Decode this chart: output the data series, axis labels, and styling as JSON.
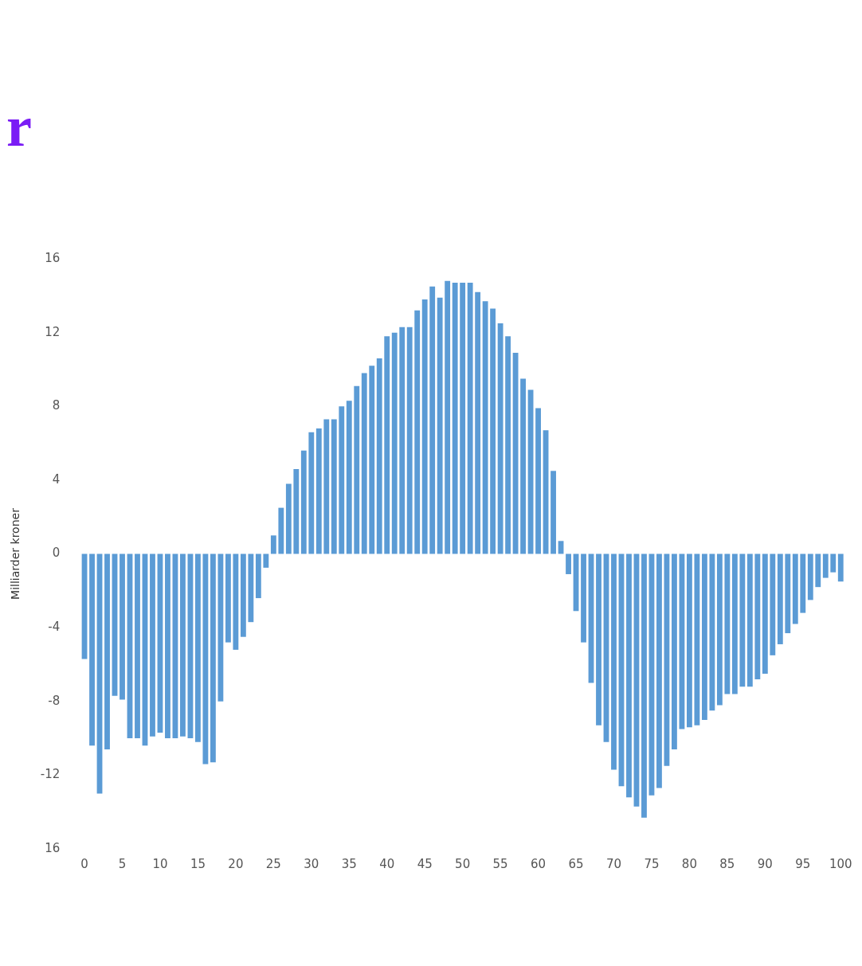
{
  "chart_data": {
    "type": "bar",
    "title": "r",
    "ylabel": "Milliarder kroner",
    "categories": [
      "0",
      null,
      null,
      null,
      null,
      "5",
      null,
      null,
      null,
      null,
      "10",
      null,
      null,
      null,
      null,
      "15",
      null,
      null,
      null,
      null,
      "20",
      null,
      null,
      null,
      null,
      "25",
      null,
      null,
      null,
      null,
      "30",
      null,
      null,
      null,
      null,
      "35",
      null,
      null,
      null,
      null,
      "40",
      null,
      null,
      null,
      null,
      "45",
      null,
      null,
      null,
      null,
      "50",
      null,
      null,
      null,
      null,
      "55",
      null,
      null,
      null,
      null,
      "60",
      null,
      null,
      null,
      null,
      "65",
      null,
      null,
      null,
      null,
      "70",
      null,
      null,
      null,
      null,
      "75",
      null,
      null,
      null,
      null,
      "80",
      null,
      null,
      null,
      null,
      "85",
      null,
      null,
      null,
      null,
      "90",
      null,
      null,
      null,
      null,
      "95",
      null,
      null,
      null,
      null,
      "100"
    ],
    "values": [
      -5.7,
      -10.4,
      -13.0,
      -10.6,
      -7.7,
      -7.9,
      -10.0,
      -10.0,
      -10.4,
      -9.9,
      -9.7,
      -10.0,
      -10.0,
      -9.9,
      -10.0,
      -10.2,
      -11.4,
      -11.3,
      -8.0,
      -4.8,
      -5.2,
      -4.5,
      -3.7,
      -2.4,
      -0.75,
      1.0,
      2.5,
      3.8,
      4.6,
      5.6,
      6.6,
      6.8,
      7.3,
      7.3,
      8.0,
      8.3,
      9.1,
      9.8,
      10.2,
      10.6,
      11.8,
      12.0,
      12.3,
      12.3,
      13.2,
      13.8,
      14.5,
      13.9,
      14.8,
      14.7,
      14.7,
      14.7,
      14.2,
      13.7,
      13.3,
      12.5,
      11.8,
      10.9,
      9.5,
      8.9,
      7.9,
      6.7,
      4.5,
      0.7,
      -1.1,
      -3.1,
      -4.8,
      -7.0,
      -9.3,
      -10.2,
      -11.7,
      -12.6,
      -13.2,
      -13.7,
      -14.3,
      -13.1,
      -12.7,
      -11.5,
      -10.6,
      -9.5,
      -9.4,
      -9.3,
      -9.0,
      -8.5,
      -8.2,
      -7.6,
      -7.6,
      -7.2,
      -7.2,
      -6.8,
      -6.5,
      -5.5,
      -4.9,
      -4.3,
      -3.8,
      -3.2,
      -2.5,
      -1.8,
      -1.3,
      -1.0,
      -1.5
    ],
    "color": "#5b9bd5",
    "ylim": [
      -16,
      16
    ],
    "yticks": [
      {
        "value": -16,
        "label": "16"
      },
      -12,
      -8,
      -4,
      0,
      4,
      8,
      12,
      16
    ]
  }
}
